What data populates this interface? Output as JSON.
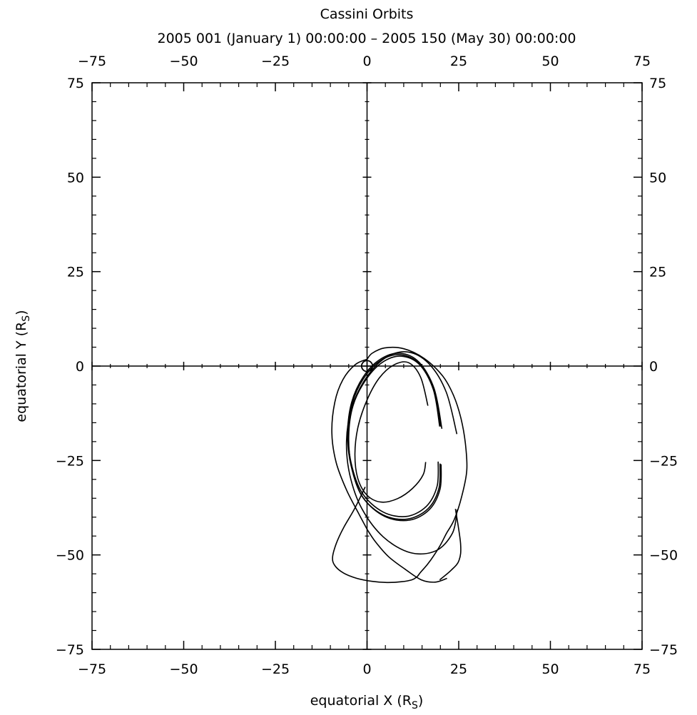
{
  "chart_data": {
    "type": "line",
    "title": "Cassini Orbits",
    "subtitle": "2005 001 (January 1) 00:00:00 – 2005 150 (May 30) 00:00:00",
    "xlabel": "equatorial X (R",
    "xlabel_sub": "S",
    "ylabel": "equatorial Y (R",
    "ylabel_sub": "S",
    "label_close": ")",
    "xlim": [
      -75,
      75
    ],
    "ylim": [
      -75,
      75
    ],
    "major_ticks": [
      -75,
      -50,
      -25,
      0,
      25,
      50,
      75
    ],
    "tick_labels": [
      "−75",
      "−50",
      "−25",
      "0",
      "25",
      "50",
      "75"
    ],
    "minor_tick_step": 5,
    "grid": false,
    "legend": "none",
    "planet_marker": {
      "x": 0,
      "y": 0,
      "radius": 1
    },
    "series": [
      {
        "x": [
          16,
          15.3,
          12.4,
          8.3,
          3.8,
          0,
          -2.5,
          -3.3,
          -2.5,
          -0.1,
          3.3,
          7.3,
          11.3,
          14.6,
          16.6
        ],
        "y": [
          -25.4,
          -28.8,
          -32.4,
          -35.1,
          -36,
          -34.2,
          -29.8,
          -23.5,
          -16.3,
          -9.2,
          -3.2,
          0.3,
          0.9,
          -2.9,
          -10.5
        ]
      },
      {
        "x": [
          19.4,
          19.1,
          16.2,
          10.8,
          4.3,
          -1.4,
          -4.4,
          -5.1,
          -3.9,
          -0.6,
          3.9,
          9.1,
          14.2,
          18.1,
          19.8
        ],
        "y": [
          -25.3,
          -31.8,
          -37.1,
          -39.8,
          -38.6,
          -33.5,
          -25.4,
          -17.4,
          -9.4,
          -2.8,
          1.6,
          3,
          0.6,
          -6.3,
          -16
        ]
      },
      {
        "x": [
          19.9,
          19.6,
          16.6,
          11,
          4.4,
          -1.4,
          -4.4,
          -5.3,
          -4.2,
          -1,
          3.6,
          9,
          14.2,
          18.3,
          20.1
        ],
        "y": [
          -25.8,
          -32.4,
          -37.8,
          -40.5,
          -39.4,
          -34.4,
          -26.2,
          -18,
          -9.6,
          -2.8,
          1.8,
          3.4,
          1,
          -6,
          -16
        ]
      },
      {
        "x": [
          20.2,
          19.9,
          17,
          11.5,
          4.8,
          -1.1,
          -4.2,
          -5,
          -3.8,
          -0.3,
          4.2,
          9.4,
          14.5,
          18.5,
          20.4
        ],
        "y": [
          -26,
          -32.6,
          -38,
          -40.8,
          -39.8,
          -34.8,
          -26.8,
          -18.6,
          -10.4,
          -3.6,
          1,
          2.6,
          0.2,
          -6.8,
          -16.6
        ]
      },
      {
        "x": [
          24.6,
          23.3,
          18.8,
          11.8,
          4.4,
          -1.5,
          -4.7,
          -5.6,
          -4.2,
          -0.3,
          5.2,
          11.3,
          17,
          21.6,
          24.5
        ],
        "y": [
          -38,
          -44.2,
          -48.9,
          -49.4,
          -45.2,
          -37.6,
          -28.8,
          -19.9,
          -11.1,
          -3.2,
          2.3,
          3.7,
          0.5,
          -6.9,
          -18
        ]
      },
      {
        "x": [
          24.1,
          25.5,
          25.1,
          23,
          19.8
        ],
        "y": [
          -37.8,
          -47,
          -51.4,
          -54,
          -56.6
        ]
      },
      {
        "x": [
          -0.5,
          -3.3,
          -6.4,
          -8.4,
          -9.4,
          -8.8,
          -6.4,
          -2.8,
          1.4,
          5.4,
          9.4,
          12.2,
          13.6,
          14.6,
          16.4,
          18.2,
          20,
          21.6,
          23.8,
          25.8,
          27.2,
          26.8,
          25.6,
          23.6,
          20.6,
          15.6,
          10,
          4.8,
          1.4,
          0
        ],
        "y": [
          -32,
          -37.6,
          -42.8,
          -47,
          -50.6,
          -52.8,
          -54.8,
          -56.2,
          -57,
          -57.3,
          -57.1,
          -56.6,
          -55.8,
          -54.6,
          -52.6,
          -50.2,
          -47.4,
          -44.4,
          -40.6,
          -34.6,
          -27.6,
          -20.4,
          -13.8,
          -7.8,
          -2.6,
          2,
          4.6,
          4.8,
          3.4,
          1.8
        ]
      },
      {
        "x": [
          0,
          -3.2,
          -6.6,
          -8.8,
          -9.6,
          -8.4,
          -5.6,
          -2.2,
          0
        ],
        "y": [
          1.8,
          0.4,
          -3.6,
          -9.6,
          -17.8,
          -25.6,
          -32.8,
          -39.2,
          -43.2
        ]
      },
      {
        "x": [
          0,
          2.2,
          5.8,
          10.4,
          14.8,
          18.6,
          21.8
        ],
        "y": [
          -43.2,
          -46.4,
          -50.4,
          -53.8,
          -56.6,
          -57.2,
          -56.2
        ]
      }
    ]
  }
}
